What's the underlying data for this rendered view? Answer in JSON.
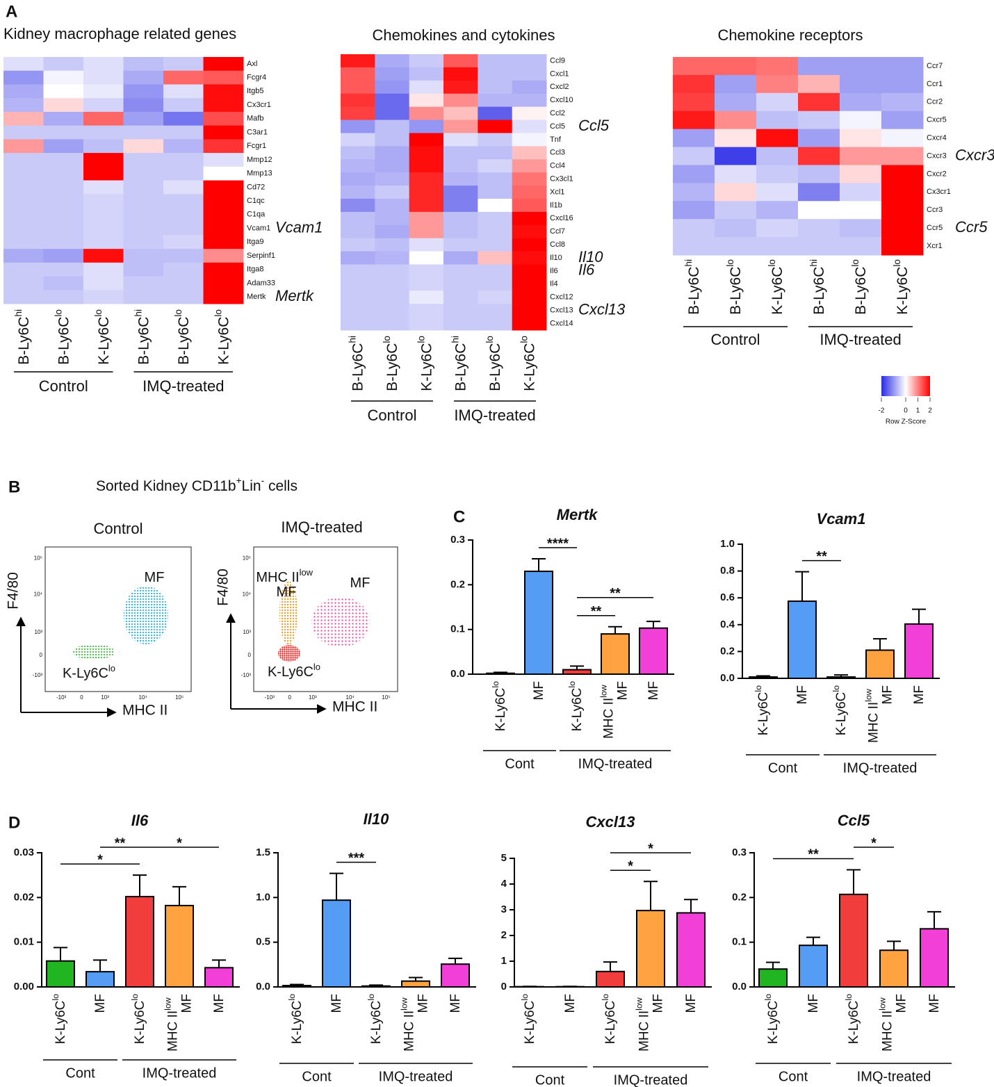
{
  "panel_labels": [
    "A",
    "B",
    "C",
    "D"
  ],
  "chart_data": [
    {
      "type": "heatmap",
      "title": "Kidney macrophage related genes",
      "rows": [
        "Axl",
        "Fcgr4",
        "Itgb5",
        "Cx3cr1",
        "Mafb",
        "C3ar1",
        "Fcgr1",
        "Mmp12",
        "Mmp13",
        "Cd72",
        "C1qc",
        "C1qa",
        "Vcam1",
        "Itga9",
        "Serpinf1",
        "Itga8",
        "Adam33",
        "Mertk"
      ],
      "groups": [
        {
          "name": "Control",
          "columns": [
            "B-Ly6Chi",
            "B-Ly6Clo",
            "K-Ly6Clo"
          ]
        },
        {
          "name": "IMQ-treated",
          "columns": [
            "B-Ly6Chi",
            "B-Ly6Clo",
            "K-Ly6Clo"
          ]
        }
      ],
      "values": [
        [
          -0.3,
          -0.5,
          -0.3,
          -0.6,
          -0.5,
          2
        ],
        [
          -1,
          -0.1,
          -0.3,
          -0.8,
          1.2,
          1.3
        ],
        [
          -0.8,
          0,
          -0.2,
          -1,
          -0.3,
          1.9
        ],
        [
          -0.7,
          0.3,
          -0.4,
          -1.1,
          -0.5,
          1.9
        ],
        [
          0.6,
          -0.8,
          1.2,
          -0.9,
          -1.3,
          1.4
        ],
        [
          -0.5,
          -0.5,
          -0.5,
          -0.5,
          -0.5,
          2
        ],
        [
          0.8,
          -0.9,
          -0.6,
          0.3,
          -0.7,
          1.6
        ],
        [
          -0.5,
          -0.5,
          2,
          -0.5,
          -0.5,
          -0.3
        ],
        [
          -0.5,
          -0.5,
          2,
          -0.5,
          -0.5,
          0
        ],
        [
          -0.5,
          -0.5,
          -0.3,
          -0.5,
          -0.3,
          2
        ],
        [
          -0.5,
          -0.5,
          -0.4,
          -0.5,
          -0.5,
          2
        ],
        [
          -0.5,
          -0.5,
          -0.4,
          -0.5,
          -0.5,
          2
        ],
        [
          -0.5,
          -0.5,
          -0.4,
          -0.5,
          -0.5,
          2
        ],
        [
          -0.5,
          -0.5,
          -0.4,
          -0.5,
          -0.4,
          2
        ],
        [
          -0.8,
          -0.9,
          1.9,
          -0.6,
          -0.6,
          0.9
        ],
        [
          -0.5,
          -0.5,
          -0.3,
          -0.6,
          -0.5,
          2
        ],
        [
          -0.5,
          -0.6,
          -0.3,
          -0.5,
          -0.5,
          2
        ],
        [
          -0.5,
          -0.5,
          -0.4,
          -0.5,
          -0.5,
          2
        ]
      ],
      "highlighted": [
        "Vcam1",
        "Mertk"
      ],
      "zlim": [
        -2,
        2
      ],
      "color_scale": [
        "#2a2ae6",
        "#ffffff",
        "#ff0000"
      ]
    },
    {
      "type": "heatmap",
      "title": "Chemokines and cytokines",
      "rows": [
        "Ccl9",
        "Cxcl1",
        "Cxcl2",
        "Cxcl10",
        "Ccl2",
        "Ccl5",
        "Tnf",
        "Ccl3",
        "Ccl4",
        "Cx3cl1",
        "Xcl1",
        "Il1b",
        "Cxcl16",
        "Ccl7",
        "Ccl8",
        "Il10",
        "Il6",
        "Il4",
        "Cxcl12",
        "Cxcl13",
        "Cxcl14"
      ],
      "groups": [
        {
          "name": "Control",
          "columns": [
            "B-Ly6Chi",
            "B-Ly6Clo",
            "K-Ly6Clo"
          ]
        },
        {
          "name": "IMQ-treated",
          "columns": [
            "B-Ly6Chi",
            "B-Ly6Clo",
            "K-Ly6Clo"
          ]
        }
      ],
      "values": [
        [
          1.8,
          -0.8,
          -0.5,
          1.3,
          -0.6,
          -0.6
        ],
        [
          1.3,
          -0.9,
          -0.6,
          1.9,
          -0.6,
          -0.6
        ],
        [
          1.3,
          -1,
          -0.3,
          1.8,
          -0.6,
          -0.8
        ],
        [
          1.6,
          -1.4,
          0.2,
          0.9,
          -0.7,
          -0.7
        ],
        [
          1.5,
          -1.4,
          0.9,
          0.5,
          -1.5,
          0.1
        ],
        [
          -1,
          -0.6,
          -1,
          0.8,
          2,
          -0.3
        ],
        [
          -0.4,
          -0.6,
          2,
          -0.3,
          -0.5,
          -0.1
        ],
        [
          -0.6,
          -0.8,
          1.9,
          -0.6,
          -0.6,
          0.5
        ],
        [
          -0.7,
          -0.8,
          1.9,
          -0.6,
          -0.4,
          0.8
        ],
        [
          -0.8,
          -0.7,
          1.7,
          -0.7,
          -0.6,
          1.1
        ],
        [
          -0.7,
          -0.5,
          1.7,
          -1.2,
          -0.6,
          1.2
        ],
        [
          -1.1,
          -0.7,
          1.7,
          -1.2,
          0,
          1.3
        ],
        [
          -0.6,
          -0.7,
          0.8,
          -0.6,
          -0.5,
          2
        ],
        [
          -0.6,
          -0.8,
          0.8,
          -0.6,
          -0.5,
          1.9
        ],
        [
          -0.5,
          -0.6,
          -0.3,
          -0.5,
          -0.5,
          2
        ],
        [
          -0.8,
          -0.7,
          0,
          -0.8,
          0.5,
          1.9
        ],
        [
          -0.5,
          -0.5,
          -0.4,
          -0.5,
          -0.5,
          2
        ],
        [
          -0.5,
          -0.5,
          -0.4,
          -0.5,
          -0.5,
          2
        ],
        [
          -0.5,
          -0.5,
          -0.2,
          -0.5,
          -0.4,
          2
        ],
        [
          -0.5,
          -0.5,
          -0.4,
          -0.5,
          -0.5,
          2
        ],
        [
          -0.5,
          -0.5,
          -0.4,
          -0.5,
          -0.5,
          2
        ]
      ],
      "highlighted": [
        "Ccl5",
        "Il10",
        "Il6",
        "Cxcl13"
      ],
      "zlim": [
        -2,
        2
      ],
      "color_scale": [
        "#2a2ae6",
        "#ffffff",
        "#ff0000"
      ]
    },
    {
      "type": "heatmap",
      "title": "Chemokine receptors",
      "rows": [
        "Ccr7",
        "Ccr1",
        "Ccr2",
        "Cxcr5",
        "Cxcr4",
        "Cxcr3",
        "Cxcr2",
        "Cx3cr1",
        "Ccr3",
        "Ccr5",
        "Xcr1"
      ],
      "groups": [
        {
          "name": "Control",
          "columns": [
            "B-Ly6Chi",
            "B-Ly6Clo",
            "K-Ly6Clo"
          ]
        },
        {
          "name": "IMQ-treated",
          "columns": [
            "B-Ly6Chi",
            "B-Ly6Clo",
            "K-Ly6Clo"
          ]
        }
      ],
      "values": [
        [
          1.2,
          1.2,
          1.1,
          -0.9,
          -0.9,
          -0.9
        ],
        [
          1.6,
          -0.9,
          1,
          0.6,
          -0.9,
          -0.9
        ],
        [
          1.5,
          -0.8,
          -0.4,
          1.6,
          -0.8,
          -0.7
        ],
        [
          1.8,
          0.9,
          -0.6,
          -0.5,
          -0.1,
          -0.9
        ],
        [
          -0.9,
          0.2,
          1.9,
          -0.9,
          0.2,
          -0.1
        ],
        [
          -0.5,
          -1.8,
          -0.6,
          1.6,
          0.8,
          0.8
        ],
        [
          -0.9,
          -0.3,
          -0.5,
          -0.6,
          0.3,
          2
        ],
        [
          -0.7,
          0.3,
          -0.3,
          -1.2,
          -0.4,
          2
        ],
        [
          -0.9,
          -0.5,
          -0.7,
          0,
          0,
          2
        ],
        [
          -0.5,
          -0.6,
          -0.4,
          -0.5,
          -0.6,
          2
        ],
        [
          -0.5,
          -0.5,
          -0.5,
          -0.5,
          -0.5,
          2
        ]
      ],
      "highlighted": [
        "Cxcr3",
        "Ccr5"
      ],
      "zlim": [
        -2,
        2
      ],
      "color_scale": [
        "#2a2ae6",
        "#ffffff",
        "#ff0000"
      ],
      "colorbar": {
        "ticks": [
          -2,
          0,
          1,
          2
        ],
        "label": "Row Z-Score"
      }
    },
    {
      "type": "flow",
      "title": "Sorted Kidney CD11b+Lin-  cells",
      "xlabel": "MHC II",
      "ylabel": "F4/80",
      "tick_labels": [
        "-10³",
        "0",
        "10³",
        "10⁴",
        "10⁵"
      ],
      "plots": [
        {
          "title": "Control",
          "gates": [
            "MF",
            "K-Ly6Clo"
          ]
        },
        {
          "title": "IMQ-treated",
          "gates": [
            "MHC IIlow MF",
            "MF",
            "K-Ly6Clo"
          ]
        }
      ]
    },
    {
      "type": "bar",
      "title": "Mertk",
      "groups": [
        {
          "name": "Cont",
          "categories": [
            "K-Ly6Clo",
            "MF"
          ]
        },
        {
          "name": "IMQ-treated",
          "categories": [
            "K-Ly6Clo",
            "MHC IIlow MF",
            "MF"
          ]
        }
      ],
      "values": [
        0.002,
        0.23,
        0.01,
        0.09,
        0.103
      ],
      "errors": [
        0.002,
        0.028,
        0.008,
        0.016,
        0.015
      ],
      "colors": [
        "#22b522",
        "#559cf5",
        "#f23d3d",
        "#ffa23f",
        "#f23fd8"
      ],
      "ylim": [
        0,
        0.3
      ],
      "yticks": [
        {
          "value": 0,
          "label": "0.0"
        },
        0.1,
        0.2,
        0.3
      ],
      "significance": [
        {
          "from": 1,
          "to": 2,
          "label": "****"
        },
        {
          "from": 2,
          "to": 3,
          "label": "**"
        },
        {
          "from": 2,
          "to": 4,
          "label": "**"
        }
      ]
    },
    {
      "type": "bar",
      "title": "Vcam1",
      "groups": [
        {
          "name": "Cont",
          "categories": [
            "K-Ly6Clo",
            "MF"
          ]
        },
        {
          "name": "IMQ-treated",
          "categories": [
            "K-Ly6Clo",
            "MHC IIlow MF",
            "MF"
          ]
        }
      ],
      "values": [
        0.01,
        0.575,
        0.01,
        0.21,
        0.405
      ],
      "errors": [
        0.008,
        0.22,
        0.015,
        0.085,
        0.11
      ],
      "colors": [
        "#22b522",
        "#559cf5",
        "#f23d3d",
        "#ffa23f",
        "#f23fd8"
      ],
      "ylim": [
        0,
        1.0
      ],
      "yticks": [
        {
          "value": 0,
          "label": "0.0"
        },
        0.2,
        0.4,
        0.6,
        0.8,
        {
          "value": 1,
          "label": "1.0"
        }
      ],
      "significance": [
        {
          "from": 1,
          "to": 2,
          "label": "**"
        }
      ]
    },
    {
      "type": "bar",
      "title": "Il6",
      "groups": [
        {
          "name": "Cont",
          "categories": [
            "K-Ly6Clo",
            "MF"
          ]
        },
        {
          "name": "IMQ-treated",
          "categories": [
            "K-Ly6Clo",
            "MHC IIlow MF",
            "MF"
          ]
        }
      ],
      "values": [
        0.0058,
        0.0034,
        0.0202,
        0.0182,
        0.0043
      ],
      "errors": [
        0.003,
        0.0026,
        0.0048,
        0.0042,
        0.0017
      ],
      "colors": [
        "#22b522",
        "#559cf5",
        "#f23d3d",
        "#ffa23f",
        "#f23fd8"
      ],
      "ylim": [
        0,
        0.03
      ],
      "yticks": [
        {
          "value": 0,
          "label": "0.00"
        },
        0.01,
        0.02,
        0.03
      ],
      "significance": [
        {
          "from": 0,
          "to": 2,
          "label": "*"
        },
        {
          "from": 1,
          "to": 2,
          "label": "**"
        },
        {
          "from": 2,
          "to": 4,
          "label": "*"
        }
      ]
    },
    {
      "type": "bar",
      "title": "Il10",
      "groups": [
        {
          "name": "Cont",
          "categories": [
            "K-Ly6Clo",
            "MF"
          ]
        },
        {
          "name": "IMQ-treated",
          "categories": [
            "K-Ly6Clo",
            "MHC IIlow MF",
            "MF"
          ]
        }
      ],
      "values": [
        0.015,
        0.97,
        0.01,
        0.065,
        0.255
      ],
      "errors": [
        0.012,
        0.3,
        0.01,
        0.04,
        0.065
      ],
      "colors": [
        "#22b522",
        "#559cf5",
        "#f23d3d",
        "#ffa23f",
        "#f23fd8"
      ],
      "ylim": [
        0,
        1.5
      ],
      "yticks": [
        {
          "value": 0,
          "label": "0.0"
        },
        0.5,
        {
          "value": 1,
          "label": "1.0"
        },
        1.5
      ],
      "significance": [
        {
          "from": 1,
          "to": 2,
          "label": "***"
        }
      ]
    },
    {
      "type": "bar",
      "title": "Cxcl13",
      "groups": [
        {
          "name": "Cont",
          "categories": [
            "K-Ly6Clo",
            "MF"
          ]
        },
        {
          "name": "IMQ-treated",
          "categories": [
            "K-Ly6Clo",
            "MHC IIlow MF",
            "MF"
          ]
        }
      ],
      "values": [
        0.01,
        0.01,
        0.6,
        2.97,
        2.88
      ],
      "errors": [
        0.01,
        0.01,
        0.37,
        1.13,
        0.52
      ],
      "colors": [
        "#22b522",
        "#559cf5",
        "#f23d3d",
        "#ffa23f",
        "#f23fd8"
      ],
      "ylim": [
        0,
        5
      ],
      "yticks": [
        0,
        1,
        2,
        3,
        4,
        5
      ],
      "significance": [
        {
          "from": 2,
          "to": 3,
          "label": "*"
        },
        {
          "from": 2,
          "to": 4,
          "label": "*"
        }
      ]
    },
    {
      "type": "bar",
      "title": "Ccl5",
      "groups": [
        {
          "name": "Cont",
          "categories": [
            "K-Ly6Clo",
            "MF"
          ]
        },
        {
          "name": "IMQ-treated",
          "categories": [
            "K-Ly6Clo",
            "MHC IIlow MF",
            "MF"
          ]
        }
      ],
      "values": [
        0.04,
        0.093,
        0.207,
        0.082,
        0.13
      ],
      "errors": [
        0.015,
        0.018,
        0.055,
        0.02,
        0.038
      ],
      "colors": [
        "#22b522",
        "#559cf5",
        "#f23d3d",
        "#ffa23f",
        "#f23fd8"
      ],
      "ylim": [
        0,
        0.3
      ],
      "yticks": [
        {
          "value": 0,
          "label": "0.0"
        },
        0.1,
        0.2,
        0.3
      ],
      "significance": [
        {
          "from": 0,
          "to": 2,
          "label": "**"
        },
        {
          "from": 2,
          "to": 3,
          "label": "*"
        }
      ]
    }
  ]
}
